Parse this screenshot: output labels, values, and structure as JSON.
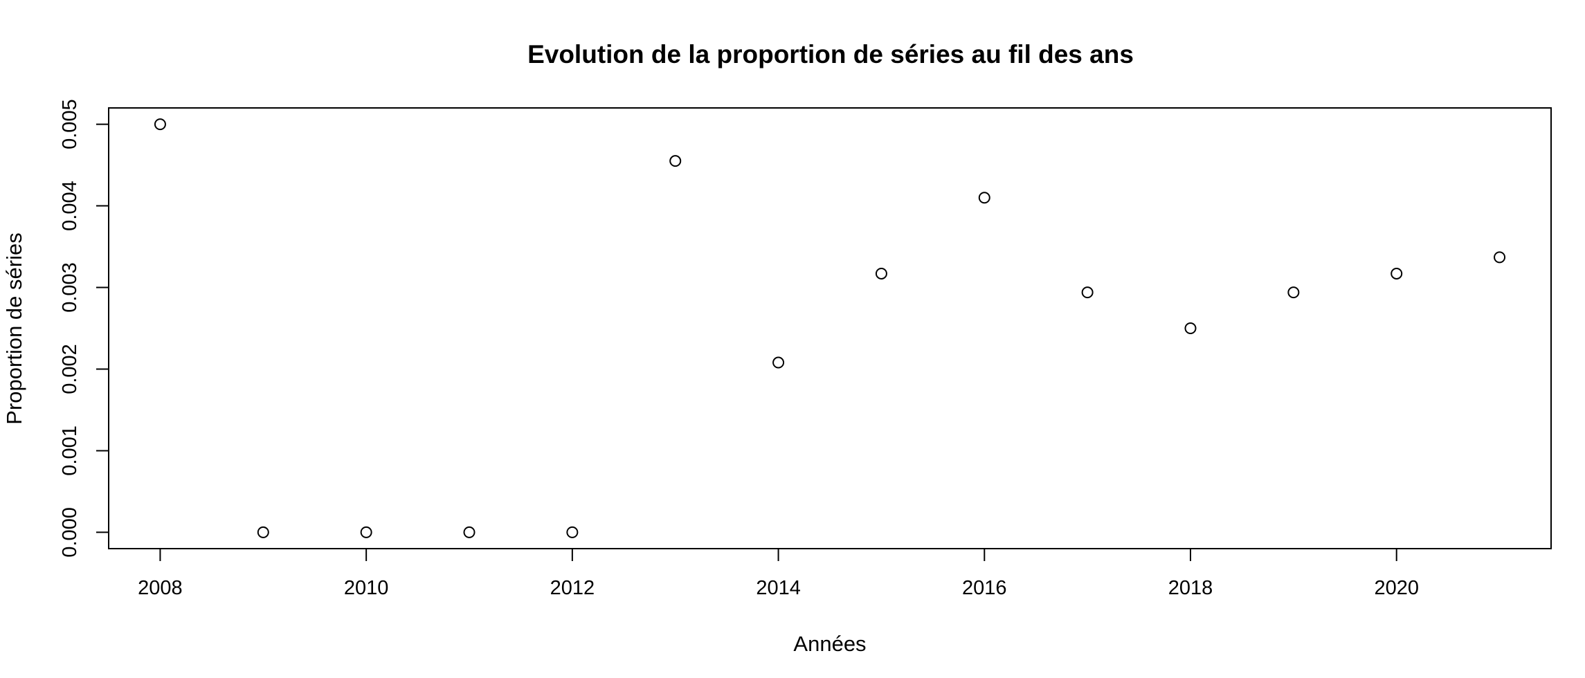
{
  "chart_data": {
    "type": "scatter",
    "title": "Evolution de la proportion de séries au fil des ans",
    "xlabel": "Années",
    "ylabel": "Proportion de séries",
    "xlim": [
      2007.5,
      2021.5
    ],
    "ylim": [
      -0.0002,
      0.0052
    ],
    "x_ticks": [
      "2008",
      "2010",
      "2012",
      "2014",
      "2016",
      "2018",
      "2020"
    ],
    "y_ticks": [
      "0.000",
      "0.001",
      "0.002",
      "0.003",
      "0.004",
      "0.005"
    ],
    "grid": false,
    "legend": "none",
    "marker": "open-circle",
    "x": [
      2008,
      2009,
      2010,
      2011,
      2012,
      2013,
      2014,
      2015,
      2016,
      2017,
      2018,
      2019,
      2020,
      2021
    ],
    "y": [
      0.005,
      0.0,
      0.0,
      0.0,
      0.0,
      0.00455,
      0.00208,
      0.00317,
      0.0041,
      0.00294,
      0.0025,
      0.00294,
      0.00317,
      0.00337
    ]
  }
}
